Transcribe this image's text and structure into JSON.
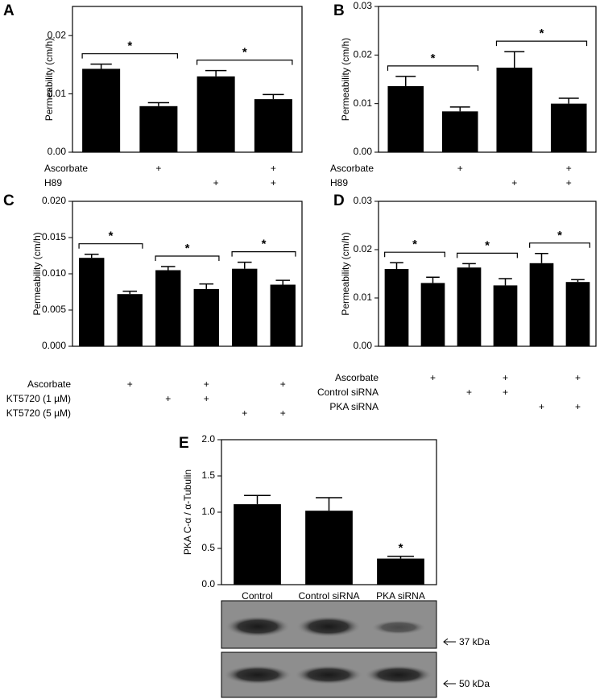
{
  "chart_data": [
    {
      "type": "bar",
      "label": "A",
      "y_label": "Permeability (cm/h)",
      "color": "#000000",
      "ylim": [
        0,
        0.025
      ],
      "yticks": [
        {
          "value": 0,
          "label": "0.00"
        },
        0.01,
        0.02
      ],
      "values": [
        0.0143,
        0.0079,
        0.013,
        0.0091
      ],
      "errors": [
        0.0008,
        0.0006,
        0.001,
        0.0008
      ],
      "conditions": [
        {
          "name": "Ascorbate",
          "marks": [
            null,
            "+",
            null,
            "+"
          ]
        },
        {
          "name": "H89",
          "marks": [
            null,
            null,
            "+",
            "+"
          ]
        }
      ],
      "significance": [
        "*",
        "*"
      ]
    },
    {
      "type": "bar",
      "label": "B",
      "y_label": "Permeability (cm/h)",
      "color": "#000000",
      "ylim": [
        0,
        0.03
      ],
      "yticks": [
        {
          "value": 0,
          "label": "0.00"
        },
        0.01,
        0.02,
        0.03
      ],
      "values": [
        0.0136,
        0.0084,
        0.0174,
        0.01
      ],
      "errors": [
        0.002,
        0.0009,
        0.0033,
        0.0011
      ],
      "conditions": [
        {
          "name": "Ascorbate",
          "marks": [
            null,
            "+",
            null,
            "+"
          ]
        },
        {
          "name": "H89",
          "marks": [
            null,
            null,
            "+",
            "+"
          ]
        }
      ],
      "significance": [
        "*",
        "*"
      ]
    },
    {
      "type": "bar",
      "label": "C",
      "y_label": "Permeability (cm/h)",
      "color": "#000000",
      "ylim": [
        0,
        0.02
      ],
      "yticks": [
        {
          "value": 0,
          "label": "0.000"
        },
        0.005,
        {
          "value": 0.01,
          "label": "0.010"
        },
        0.015,
        {
          "value": 0.02,
          "label": "0.020"
        }
      ],
      "values": [
        0.0122,
        0.0072,
        0.0105,
        0.0079,
        0.0107,
        0.0085
      ],
      "errors": [
        0.0005,
        0.0004,
        0.0005,
        0.0007,
        0.0009,
        0.0006
      ],
      "conditions": [
        {
          "name": "Ascorbate",
          "marks": [
            null,
            "+",
            null,
            "+",
            null,
            "+"
          ]
        },
        {
          "name": "KT5720 (1 µM)",
          "marks": [
            null,
            null,
            "+",
            "+",
            null,
            null
          ]
        },
        {
          "name": "KT5720 (5 µM)",
          "marks": [
            null,
            null,
            null,
            null,
            "+",
            "+"
          ]
        }
      ],
      "significance": [
        "*",
        "*",
        "*"
      ]
    },
    {
      "type": "bar",
      "label": "D",
      "y_label": "Permeability (cm/h)",
      "color": "#000000",
      "ylim": [
        0,
        0.03
      ],
      "yticks": [
        {
          "value": 0,
          "label": "0.00"
        },
        0.01,
        0.02,
        0.03
      ],
      "values": [
        0.016,
        0.0131,
        0.0163,
        0.0126,
        0.0172,
        0.0133
      ],
      "errors": [
        0.0013,
        0.0012,
        0.0008,
        0.0014,
        0.002,
        0.0005
      ],
      "conditions": [
        {
          "name": "Ascorbate",
          "marks": [
            null,
            "+",
            null,
            "+",
            null,
            "+"
          ]
        },
        {
          "name": "Control siRNA",
          "marks": [
            null,
            null,
            "+",
            "+",
            null,
            null
          ]
        },
        {
          "name": "PKA siRNA",
          "marks": [
            null,
            null,
            null,
            null,
            "+",
            "+"
          ]
        }
      ],
      "significance": [
        "*",
        "*",
        "*"
      ]
    },
    {
      "type": "bar",
      "label": "E",
      "y_label": "PKA C-α / α-Tubulin",
      "color": "#000000",
      "ylim": [
        0,
        2
      ],
      "yticks": [
        {
          "value": 0,
          "label": "0.0"
        },
        0.5,
        {
          "value": 1,
          "label": "1.0"
        },
        1.5,
        {
          "value": 2,
          "label": "2.0"
        }
      ],
      "categories": [
        "Control",
        "Control siRNA",
        "PKA siRNA"
      ],
      "values": [
        1.11,
        1.02,
        0.36
      ],
      "errors": [
        0.12,
        0.18,
        0.03
      ],
      "annotations": [
        {
          "text": "*",
          "category": "PKA siRNA"
        }
      ],
      "blot_bands": [
        "37 kDa",
        "50 kDa"
      ]
    }
  ]
}
